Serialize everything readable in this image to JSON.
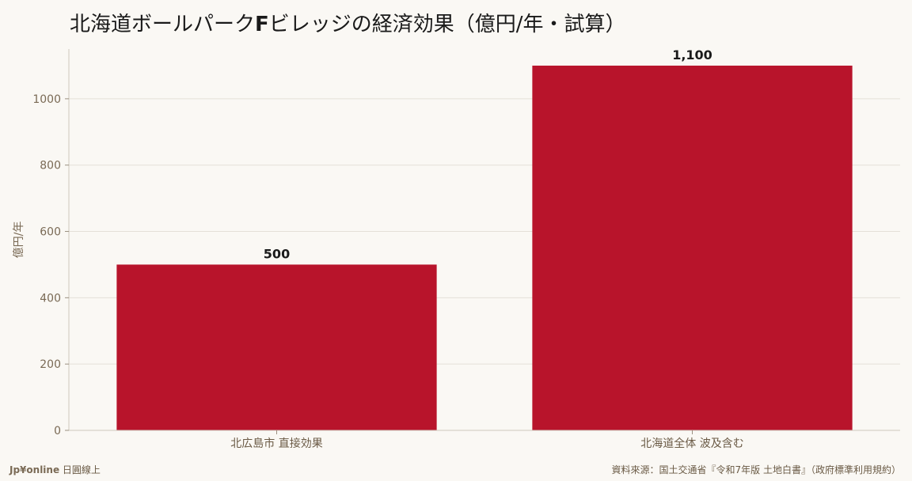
{
  "chart_data": {
    "type": "bar",
    "title_parts": [
      "北海道ボールパーク",
      "F",
      "ビレッジの経済効果（億円/年・試算）"
    ],
    "categories": [
      "北広島市 直接効果",
      "北海道全体 波及含む"
    ],
    "values": [
      500,
      1100
    ],
    "value_labels": [
      "500",
      "1,100"
    ],
    "ylabel": "億円/年",
    "xlabel": "",
    "ylim": [
      0,
      1150
    ],
    "yticks": [
      0,
      200,
      400,
      600,
      800,
      1000
    ],
    "grid": true,
    "bar_color": "#b8142b"
  },
  "footer": {
    "brand": "Jp¥online",
    "brand_suffix": " 日圓線上",
    "source": "資料來源：国土交通省『令和7年版 土地白書』（政府標準利用規約）"
  }
}
